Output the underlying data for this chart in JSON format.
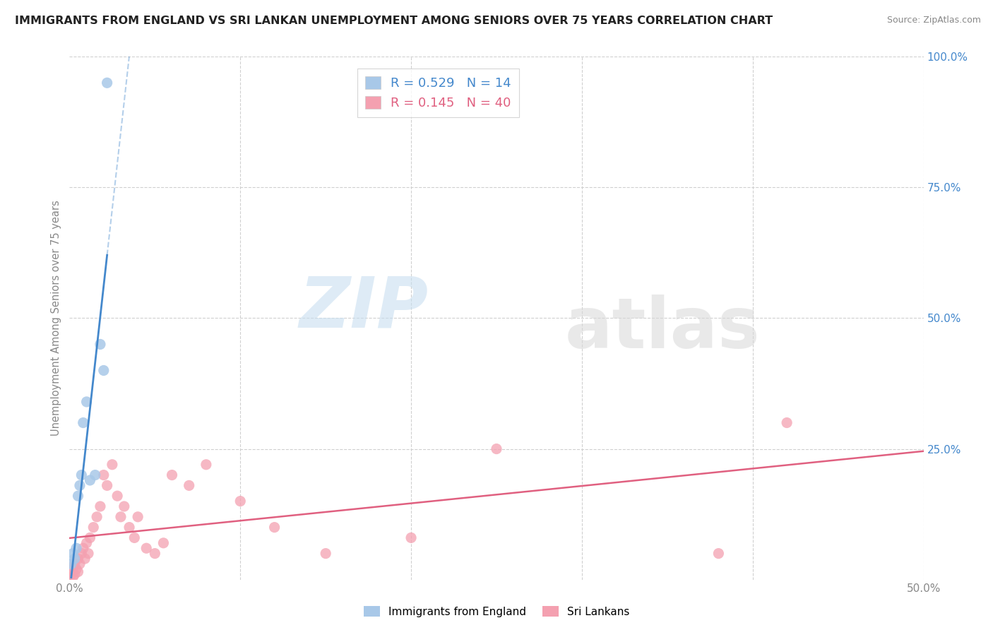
{
  "title": "IMMIGRANTS FROM ENGLAND VS SRI LANKAN UNEMPLOYMENT AMONG SENIORS OVER 75 YEARS CORRELATION CHART",
  "source": "Source: ZipAtlas.com",
  "ylabel": "Unemployment Among Seniors over 75 years",
  "xlim": [
    0.0,
    0.5
  ],
  "ylim": [
    0.0,
    1.0
  ],
  "legend_labels": [
    "Immigrants from England",
    "Sri Lankans"
  ],
  "R_england": 0.529,
  "N_england": 14,
  "R_srilanka": 0.145,
  "N_srilanka": 40,
  "england_color": "#a8c8e8",
  "srilanka_color": "#f4a0b0",
  "england_line_color": "#4488cc",
  "srilanka_line_color": "#e06080",
  "watermark_zip": "ZIP",
  "watermark_atlas": "atlas",
  "england_x": [
    0.001,
    0.002,
    0.003,
    0.004,
    0.005,
    0.006,
    0.007,
    0.008,
    0.01,
    0.012,
    0.015,
    0.018,
    0.02,
    0.022
  ],
  "england_y": [
    0.03,
    0.05,
    0.04,
    0.06,
    0.16,
    0.18,
    0.2,
    0.3,
    0.34,
    0.19,
    0.2,
    0.45,
    0.4,
    0.95
  ],
  "srilanka_x": [
    0.001,
    0.002,
    0.002,
    0.003,
    0.003,
    0.004,
    0.005,
    0.005,
    0.006,
    0.007,
    0.008,
    0.009,
    0.01,
    0.011,
    0.012,
    0.014,
    0.016,
    0.018,
    0.02,
    0.022,
    0.025,
    0.028,
    0.03,
    0.032,
    0.035,
    0.038,
    0.04,
    0.045,
    0.05,
    0.055,
    0.06,
    0.07,
    0.08,
    0.1,
    0.12,
    0.15,
    0.2,
    0.25,
    0.38,
    0.42
  ],
  "srilanka_y": [
    0.01,
    0.005,
    0.02,
    0.01,
    0.03,
    0.02,
    0.04,
    0.015,
    0.03,
    0.05,
    0.06,
    0.04,
    0.07,
    0.05,
    0.08,
    0.1,
    0.12,
    0.14,
    0.2,
    0.18,
    0.22,
    0.16,
    0.12,
    0.14,
    0.1,
    0.08,
    0.12,
    0.06,
    0.05,
    0.07,
    0.2,
    0.18,
    0.22,
    0.15,
    0.1,
    0.05,
    0.08,
    0.25,
    0.05,
    0.3
  ]
}
